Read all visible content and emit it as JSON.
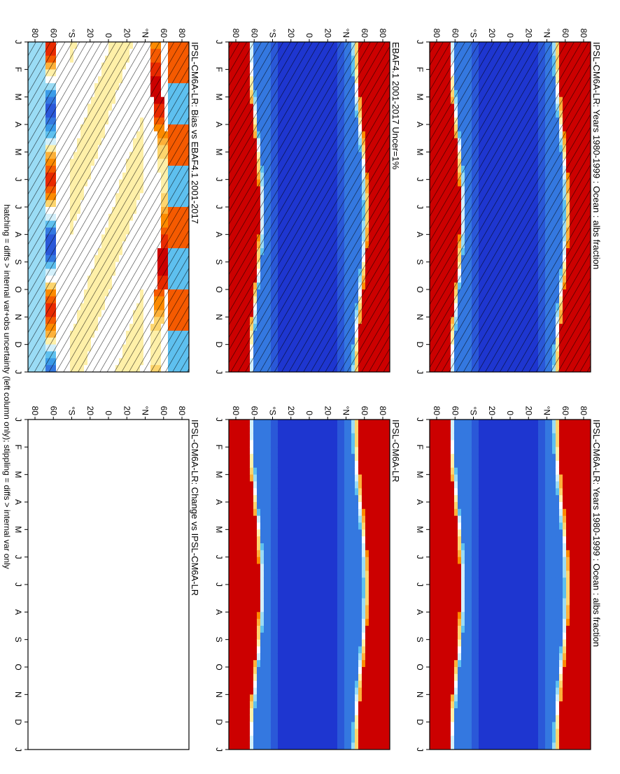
{
  "footer": "hatching = diffs > internal var+obs uncertainty (left column only); stippling = diffs > internal var only",
  "months": [
    "J",
    "F",
    "M",
    "A",
    "M",
    "J",
    "J",
    "A",
    "S",
    "O",
    "N",
    "D",
    "J"
  ],
  "lat_labels": [
    "80",
    "60",
    "°N",
    "20",
    "0",
    "20",
    "°S",
    "60",
    "80"
  ],
  "lat_label_note": "latitude axis reads 80N ... 80S from top to bottom in rotated frame",
  "colors": {
    "abs": [
      "#cc0000",
      "#e82a00",
      "#f55a00",
      "#fc8a00",
      "#fdb13a",
      "#fdd56e",
      "#fff0a8",
      "#ffffff",
      "#d3f0fb",
      "#9adcf5",
      "#5ec0ef",
      "#3a9be8",
      "#3478e0",
      "#2a58d8",
      "#1e36d0",
      "#1010c8"
    ],
    "diff": [
      "#cc0000",
      "#e82a00",
      "#f55a00",
      "#fc8a00",
      "#fdb13a",
      "#fdd56e",
      "#fff0a8",
      "#ffffff",
      "#ffffff",
      "#d3f0fb",
      "#9adcf5",
      "#5ec0ef",
      "#3a9be8",
      "#3478e0",
      "#2a58d8",
      "#1010c8"
    ]
  },
  "colorbars": {
    "abs": [
      "0.42",
      "0.38",
      "0.34",
      "0.3",
      "0.26",
      "0.22",
      "0.18",
      "0.14",
      "0.1",
      "0.06",
      "0.02"
    ],
    "diff": [
      "0.1",
      "0.08",
      "0.06",
      "0.04",
      "0.02",
      "0",
      "-0.02",
      "-0.04",
      "-0.06",
      "-0.08",
      "-0.1"
    ]
  },
  "panels": [
    {
      "id": "tl",
      "title": "IPSL-CM6A-LR: Years 1980-1999 : Ocean : albs fraction",
      "kind": "abs",
      "hatch": true
    },
    {
      "id": "ml",
      "title": "EBAF4.1 2001-2017 Uncer=1%",
      "kind": "abs",
      "hatch": true
    },
    {
      "id": "bl",
      "title": "IPSL-CM6A-LR: Bias vs EBAF4.1 2001-2017",
      "kind": "diff",
      "hatch": true
    },
    {
      "id": "tr",
      "title": "IPSL-CM6A-LR: Years 1980-1999 : Ocean : albs fraction",
      "kind": "abs",
      "hatch": false
    },
    {
      "id": "mr",
      "title": "IPSL-CM6A-LR",
      "kind": "abs",
      "hatch": false
    },
    {
      "id": "br",
      "title": "IPSL-CM6A-LR: Change vs IPSL-CM6A-LR",
      "kind": "blank",
      "hatch": false
    }
  ],
  "chart_data": [
    {
      "type": "heatmap",
      "title": "IPSL-CM6A-LR: Years 1980-1999 : Ocean : albs fraction",
      "x": "month",
      "y": "latitude",
      "colorbar": [
        0.02,
        0.42
      ],
      "description_values": {
        "polar_caps": 0.42,
        "tropics": 0.04,
        "midlat": 0.07
      }
    },
    {
      "type": "heatmap",
      "title": "EBAF4.1 2001-2017 Uncer=1%",
      "x": "month",
      "y": "latitude",
      "colorbar": [
        0.02,
        0.42
      ]
    },
    {
      "type": "heatmap",
      "title": "IPSL-CM6A-LR: Bias vs EBAF4.1 2001-2017",
      "x": "month",
      "y": "latitude",
      "colorbar": [
        -0.1,
        0.1
      ]
    },
    {
      "type": "heatmap",
      "title": "IPSL-CM6A-LR: Years 1980-1999 : Ocean : albs fraction",
      "x": "month",
      "y": "latitude",
      "colorbar": [
        0.02,
        0.42
      ]
    },
    {
      "type": "heatmap",
      "title": "IPSL-CM6A-LR",
      "x": "month",
      "y": "latitude",
      "colorbar": [
        0.02,
        0.42
      ]
    },
    {
      "type": "heatmap",
      "title": "IPSL-CM6A-LR: Change vs IPSL-CM6A-LR",
      "x": "month",
      "y": "latitude",
      "colorbar": [
        -0.1,
        0.1
      ]
    }
  ]
}
